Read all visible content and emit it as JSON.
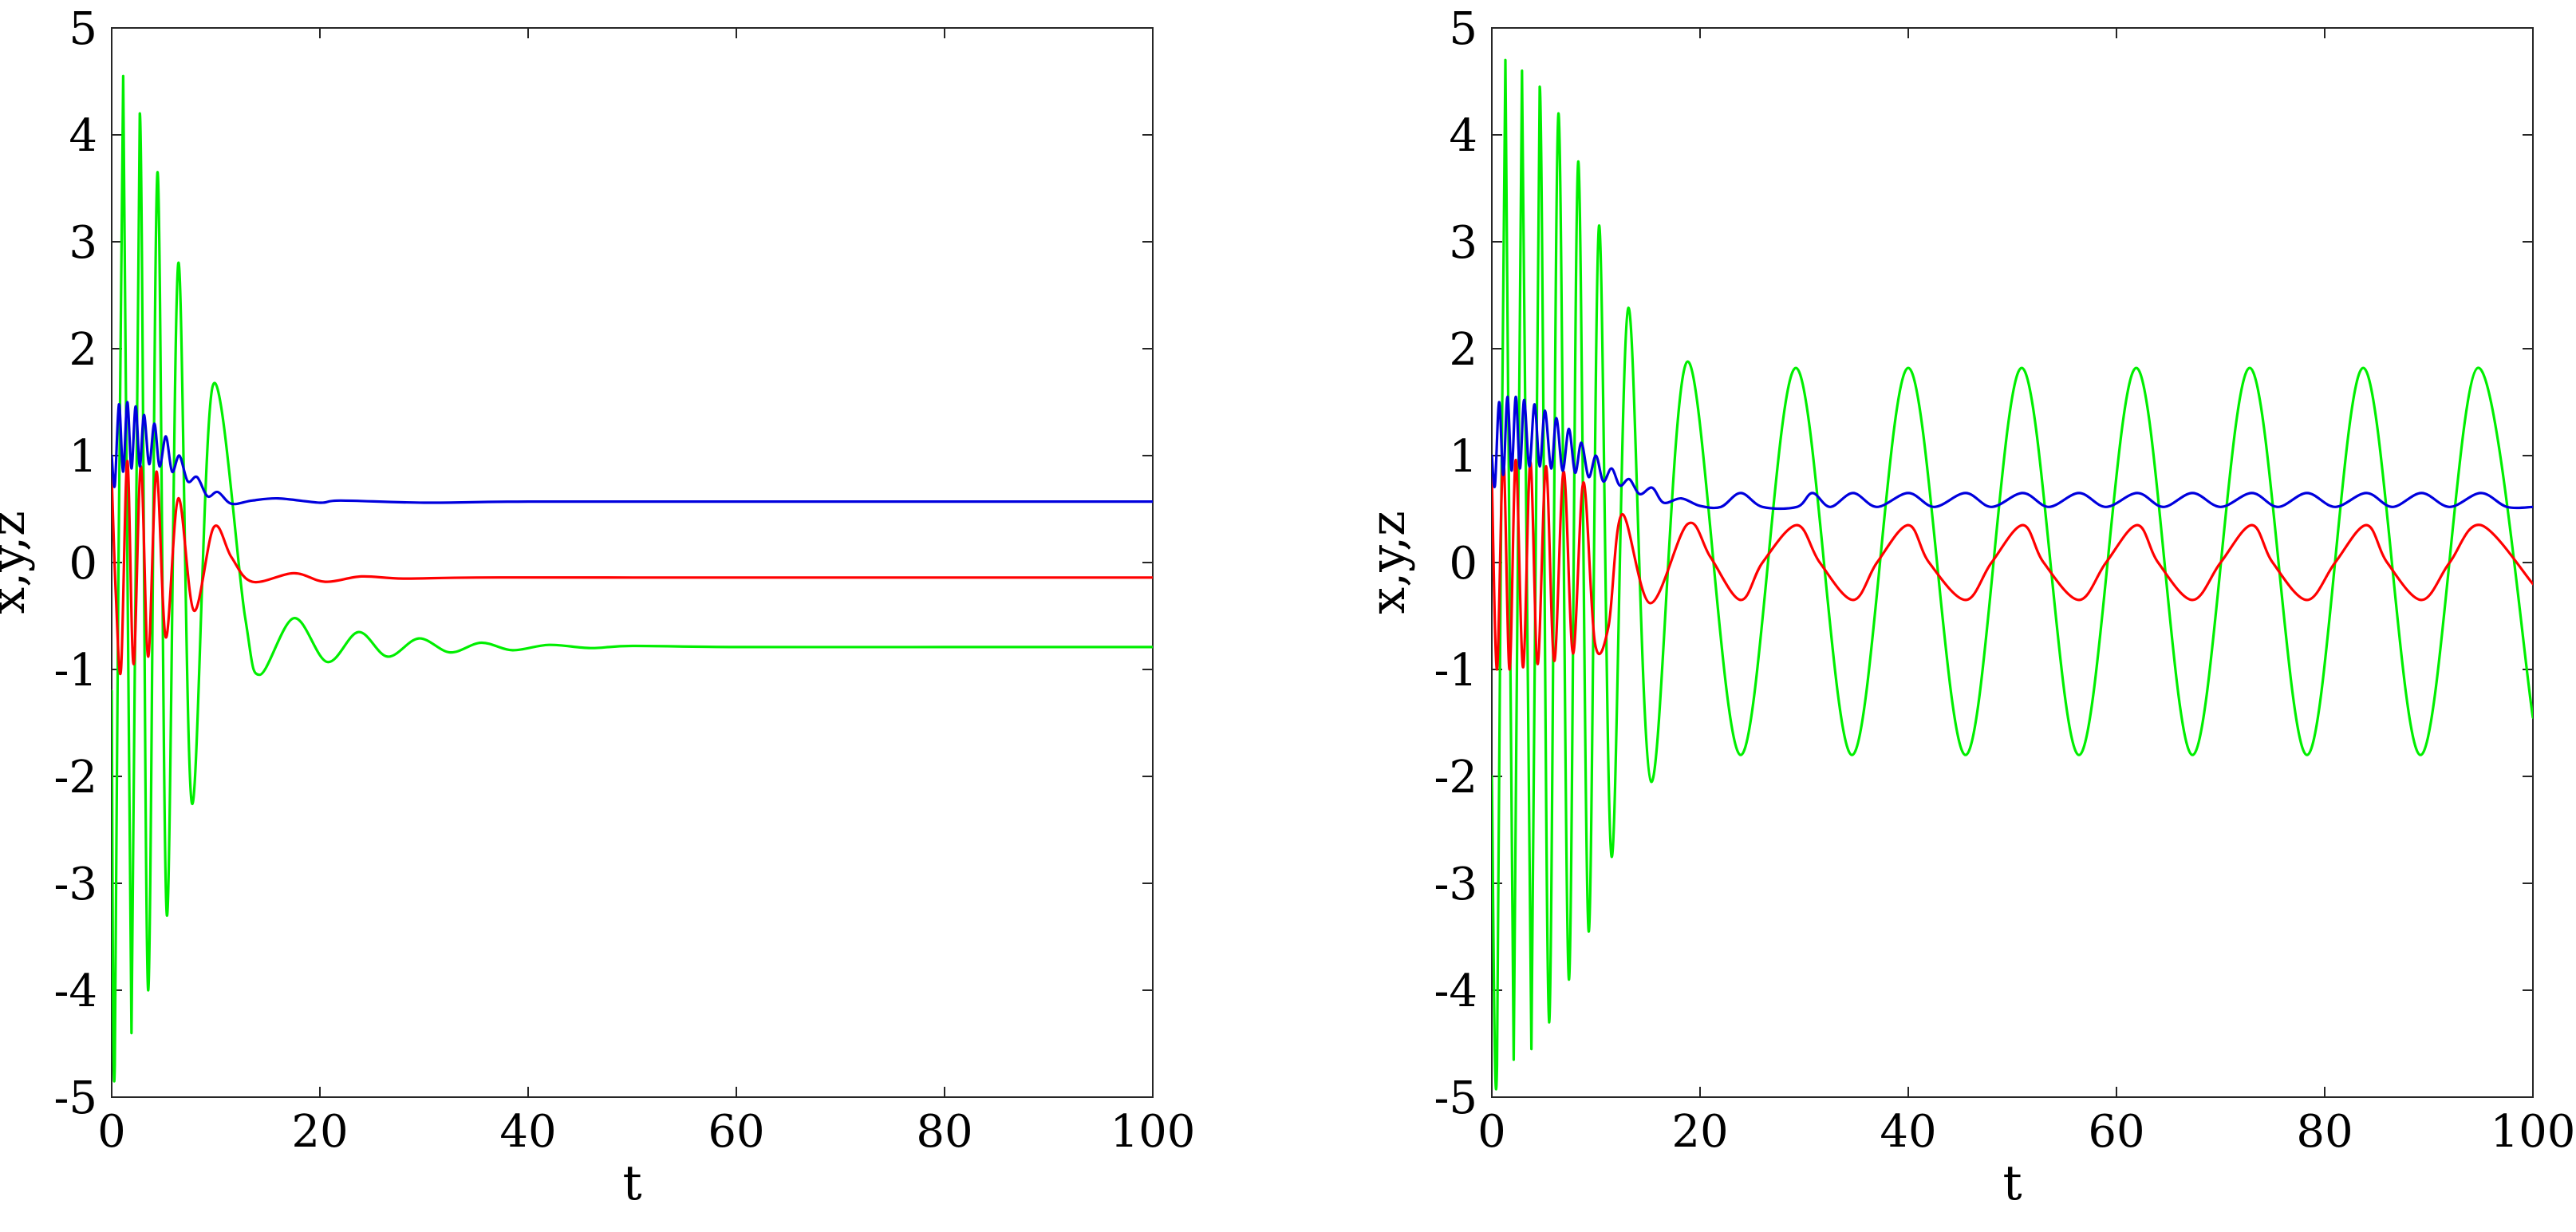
{
  "chart_data": [
    {
      "type": "line",
      "xlabel": "t",
      "ylabel": "x,y,z",
      "xlim": [
        0,
        100
      ],
      "ylim": [
        -5,
        5
      ],
      "xticks": [
        "0",
        "20",
        "40",
        "60",
        "80",
        "100"
      ],
      "yticks": [
        "5",
        "4",
        "3",
        "2",
        "1",
        "0",
        "-1",
        "-2",
        "-3",
        "-4",
        "-5"
      ],
      "grid": false,
      "series": [
        {
          "color": "#00ee00",
          "points": [
            [
              0,
              -1.2
            ],
            [
              0.3,
              -4.7
            ],
            [
              1.1,
              4.55
            ],
            [
              1.9,
              -4.4
            ],
            [
              2.7,
              4.2
            ],
            [
              3.5,
              -4.0
            ],
            [
              4.4,
              3.65
            ],
            [
              5.3,
              -3.3
            ],
            [
              6.4,
              2.8
            ],
            [
              7.7,
              -2.25
            ],
            [
              9.7,
              1.65
            ],
            [
              12.8,
              -0.5
            ],
            [
              14.2,
              -1.05
            ],
            [
              17.5,
              -0.52
            ],
            [
              20.7,
              -0.93
            ],
            [
              23.7,
              -0.65
            ],
            [
              26.5,
              -0.88
            ],
            [
              29.5,
              -0.71
            ],
            [
              32.5,
              -0.84
            ],
            [
              35.5,
              -0.75
            ],
            [
              38.5,
              -0.82
            ],
            [
              42,
              -0.77
            ],
            [
              46,
              -0.8
            ],
            [
              50,
              -0.78
            ],
            [
              60,
              -0.79
            ],
            [
              80,
              -0.79
            ],
            [
              100,
              -0.79
            ]
          ]
        },
        {
          "color": "#ff0000",
          "points": [
            [
              0,
              0.8
            ],
            [
              0.4,
              -0.3
            ],
            [
              0.9,
              -1.0
            ],
            [
              1.5,
              0.95
            ],
            [
              2.1,
              -0.95
            ],
            [
              2.8,
              0.9
            ],
            [
              3.5,
              -0.88
            ],
            [
              4.3,
              0.85
            ],
            [
              5.2,
              -0.7
            ],
            [
              6.4,
              0.6
            ],
            [
              7.9,
              -0.45
            ],
            [
              9.8,
              0.33
            ],
            [
              11.5,
              0.05
            ],
            [
              13.5,
              -0.18
            ],
            [
              17.5,
              -0.1
            ],
            [
              20.5,
              -0.18
            ],
            [
              24,
              -0.13
            ],
            [
              28,
              -0.15
            ],
            [
              35,
              -0.14
            ],
            [
              50,
              -0.14
            ],
            [
              100,
              -0.14
            ]
          ]
        },
        {
          "color": "#0000dd",
          "points": [
            [
              0,
              1.0
            ],
            [
              0.3,
              0.72
            ],
            [
              0.7,
              1.48
            ],
            [
              1.1,
              0.85
            ],
            [
              1.5,
              1.5
            ],
            [
              1.9,
              0.88
            ],
            [
              2.3,
              1.46
            ],
            [
              2.7,
              0.9
            ],
            [
              3.1,
              1.38
            ],
            [
              3.6,
              0.92
            ],
            [
              4.1,
              1.3
            ],
            [
              4.6,
              0.9
            ],
            [
              5.2,
              1.18
            ],
            [
              5.8,
              0.85
            ],
            [
              6.5,
              1.0
            ],
            [
              7.3,
              0.76
            ],
            [
              8.2,
              0.8
            ],
            [
              9.2,
              0.62
            ],
            [
              10.2,
              0.66
            ],
            [
              11.5,
              0.55
            ],
            [
              13.5,
              0.58
            ],
            [
              16,
              0.6
            ],
            [
              20,
              0.56
            ],
            [
              22,
              0.58
            ],
            [
              30,
              0.56
            ],
            [
              40,
              0.57
            ],
            [
              60,
              0.57
            ],
            [
              100,
              0.57
            ]
          ]
        }
      ]
    },
    {
      "type": "line",
      "xlabel": "t",
      "ylabel": "x,y,z",
      "xlim": [
        0,
        100
      ],
      "ylim": [
        -5,
        5
      ],
      "xticks": [
        "0",
        "20",
        "40",
        "60",
        "80",
        "100"
      ],
      "yticks": [
        "5",
        "4",
        "3",
        "2",
        "1",
        "0",
        "-1",
        "-2",
        "-3",
        "-4",
        "-5"
      ],
      "grid": false,
      "series": [
        {
          "color": "#00ee00",
          "points": [
            [
              0,
              -2.0
            ],
            [
              0.5,
              -4.7
            ],
            [
              1.3,
              4.7
            ],
            [
              2.1,
              -4.65
            ],
            [
              2.9,
              4.6
            ],
            [
              3.8,
              -4.55
            ],
            [
              4.6,
              4.45
            ],
            [
              5.5,
              -4.3
            ],
            [
              6.4,
              4.2
            ],
            [
              7.4,
              -3.9
            ],
            [
              8.3,
              3.75
            ],
            [
              9.3,
              -3.45
            ],
            [
              10.3,
              3.15
            ],
            [
              11.5,
              -2.75
            ],
            [
              13.1,
              2.38
            ],
            [
              15.3,
              -2.05
            ],
            [
              18.8,
              1.88
            ],
            [
              23.9,
              -1.8
            ],
            [
              29.2,
              1.82
            ],
            [
              34.6,
              -1.8
            ],
            [
              40.0,
              1.82
            ],
            [
              45.5,
              -1.8
            ],
            [
              50.9,
              1.82
            ],
            [
              56.4,
              -1.8
            ],
            [
              61.9,
              1.82
            ],
            [
              67.3,
              -1.8
            ],
            [
              72.8,
              1.82
            ],
            [
              78.3,
              -1.8
            ],
            [
              83.7,
              1.82
            ],
            [
              89.2,
              -1.8
            ],
            [
              94.7,
              1.82
            ],
            [
              100,
              -1.45
            ]
          ]
        },
        {
          "color": "#ff0000",
          "points": [
            [
              0,
              0.8
            ],
            [
              0.5,
              -1.0
            ],
            [
              1.1,
              0.98
            ],
            [
              1.7,
              -1.0
            ],
            [
              2.3,
              0.96
            ],
            [
              3.0,
              -0.98
            ],
            [
              3.7,
              0.94
            ],
            [
              4.4,
              -0.95
            ],
            [
              5.2,
              0.9
            ],
            [
              6.0,
              -0.92
            ],
            [
              6.9,
              0.85
            ],
            [
              7.8,
              -0.85
            ],
            [
              8.8,
              0.75
            ],
            [
              9.9,
              -0.75
            ],
            [
              11.2,
              -0.6
            ],
            [
              12.5,
              0.45
            ],
            [
              15.2,
              -0.38
            ],
            [
              18.8,
              0.36
            ],
            [
              21,
              0.05
            ],
            [
              23.9,
              -0.35
            ],
            [
              26,
              0.0
            ],
            [
              29.3,
              0.35
            ],
            [
              31.5,
              0.0
            ],
            [
              34.7,
              -0.35
            ],
            [
              37,
              0.0
            ],
            [
              40.0,
              0.35
            ],
            [
              42,
              0.0
            ],
            [
              45.5,
              -0.35
            ],
            [
              48,
              0.0
            ],
            [
              51,
              0.35
            ],
            [
              53,
              0.0
            ],
            [
              56.4,
              -0.35
            ],
            [
              59,
              0.0
            ],
            [
              62,
              0.35
            ],
            [
              64,
              0.0
            ],
            [
              67.3,
              -0.35
            ],
            [
              70,
              0.0
            ],
            [
              73,
              0.35
            ],
            [
              75,
              0.0
            ],
            [
              78.3,
              -0.35
            ],
            [
              81,
              0.0
            ],
            [
              84,
              0.35
            ],
            [
              86,
              0.0
            ],
            [
              89.3,
              -0.35
            ],
            [
              92,
              0.0
            ],
            [
              95,
              0.35
            ],
            [
              100,
              -0.2
            ]
          ]
        },
        {
          "color": "#0000dd",
          "points": [
            [
              0,
              1.0
            ],
            [
              0.3,
              0.72
            ],
            [
              0.7,
              1.5
            ],
            [
              1.1,
              0.82
            ],
            [
              1.5,
              1.55
            ],
            [
              1.9,
              0.86
            ],
            [
              2.3,
              1.55
            ],
            [
              2.7,
              0.88
            ],
            [
              3.1,
              1.52
            ],
            [
              3.6,
              0.9
            ],
            [
              4.1,
              1.48
            ],
            [
              4.6,
              0.9
            ],
            [
              5.1,
              1.42
            ],
            [
              5.7,
              0.88
            ],
            [
              6.2,
              1.35
            ],
            [
              6.8,
              0.86
            ],
            [
              7.4,
              1.25
            ],
            [
              8.0,
              0.84
            ],
            [
              8.6,
              1.12
            ],
            [
              9.3,
              0.8
            ],
            [
              10.0,
              1.0
            ],
            [
              10.7,
              0.76
            ],
            [
              11.5,
              0.88
            ],
            [
              12.3,
              0.72
            ],
            [
              13.2,
              0.78
            ],
            [
              14.2,
              0.64
            ],
            [
              15.4,
              0.7
            ],
            [
              16.5,
              0.56
            ],
            [
              18.2,
              0.6
            ],
            [
              20,
              0.53
            ],
            [
              22,
              0.52
            ],
            [
              23.9,
              0.65
            ],
            [
              26,
              0.52
            ],
            [
              29.3,
              0.52
            ],
            [
              30.8,
              0.65
            ],
            [
              32.5,
              0.52
            ],
            [
              34.7,
              0.65
            ],
            [
              37,
              0.52
            ],
            [
              40.0,
              0.65
            ],
            [
              42.5,
              0.52
            ],
            [
              45.5,
              0.65
            ],
            [
              48,
              0.52
            ],
            [
              51,
              0.65
            ],
            [
              53.5,
              0.52
            ],
            [
              56.4,
              0.65
            ],
            [
              59,
              0.52
            ],
            [
              62,
              0.65
            ],
            [
              64.5,
              0.52
            ],
            [
              67.3,
              0.65
            ],
            [
              70,
              0.52
            ],
            [
              73,
              0.65
            ],
            [
              75.5,
              0.52
            ],
            [
              78.3,
              0.65
            ],
            [
              81,
              0.52
            ],
            [
              84,
              0.65
            ],
            [
              86.5,
              0.52
            ],
            [
              89.3,
              0.65
            ],
            [
              92,
              0.52
            ],
            [
              95,
              0.65
            ],
            [
              97.5,
              0.52
            ],
            [
              100,
              0.52
            ]
          ]
        }
      ]
    }
  ]
}
